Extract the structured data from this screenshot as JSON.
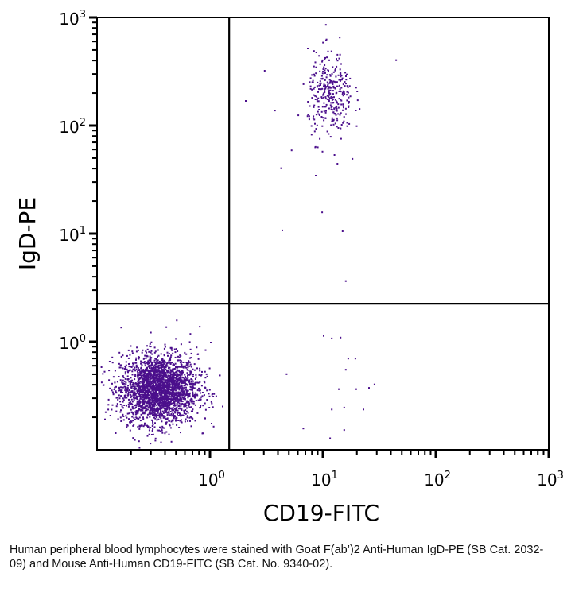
{
  "chart_data": {
    "type": "scatter",
    "title": "",
    "xlabel": "CD19-FITC",
    "ylabel": "IgD-PE",
    "xscale": "log",
    "yscale": "log",
    "xlim": [
      0.1,
      1000
    ],
    "ylim": [
      0.1,
      1000
    ],
    "grid": false,
    "point_color": "#4b0f8c",
    "x_ticks": [
      {
        "base": "10",
        "exp": "0",
        "value": 1
      },
      {
        "base": "10",
        "exp": "1",
        "value": 10
      },
      {
        "base": "10",
        "exp": "2",
        "value": 100
      },
      {
        "base": "10",
        "exp": "3",
        "value": 1000
      }
    ],
    "y_ticks": [
      {
        "base": "10",
        "exp": "0",
        "value": 1
      },
      {
        "base": "10",
        "exp": "1",
        "value": 10
      },
      {
        "base": "10",
        "exp": "2",
        "value": 100
      },
      {
        "base": "10",
        "exp": "3",
        "value": 1000
      }
    ],
    "quadrant_gates": {
      "x": 1.48,
      "y": 2.25
    },
    "populations": [
      {
        "name": "CD19- IgD- lymphocytes",
        "center": [
          0.35,
          0.37
        ],
        "log_spread": [
          0.17,
          0.16
        ],
        "count": 2600
      },
      {
        "name": "CD19+ IgD+ B cells",
        "center": [
          11.5,
          190
        ],
        "log_spread": [
          0.1,
          0.2
        ],
        "count": 330
      }
    ],
    "sparse_points": [
      [
        10,
        1.15
      ],
      [
        11.8,
        1.09
      ],
      [
        14.1,
        1.11
      ],
      [
        16.5,
        0.71
      ],
      [
        19.1,
        0.71
      ],
      [
        4.7,
        0.51
      ],
      [
        15.7,
        0.56
      ],
      [
        13.6,
        0.37
      ],
      [
        19.4,
        0.37
      ],
      [
        25.2,
        0.38
      ],
      [
        28.2,
        0.41
      ],
      [
        11.8,
        0.24
      ],
      [
        15.2,
        0.25
      ],
      [
        22.5,
        0.24
      ],
      [
        6.6,
        0.16
      ],
      [
        15.2,
        0.155
      ],
      [
        11.4,
        0.13
      ],
      [
        2.04,
        172
      ],
      [
        3.0,
        327
      ],
      [
        4.2,
        41
      ],
      [
        4.3,
        10.9
      ],
      [
        9.7,
        16
      ],
      [
        14.7,
        10.7
      ],
      [
        15.7,
        3.7
      ],
      [
        43.8,
        410
      ],
      [
        3.7,
        140
      ],
      [
        5.2,
        60
      ],
      [
        8.5,
        35
      ],
      [
        18,
        50
      ],
      [
        0.5,
        1.6
      ],
      [
        0.8,
        1.4
      ],
      [
        0.66,
        1.2
      ],
      [
        1.0,
        1.0
      ],
      [
        0.9,
        0.85
      ],
      [
        0.75,
        0.9
      ]
    ]
  },
  "caption": "Human peripheral blood lymphocytes were stained with Goat F(ab’)2 Anti-Human IgD-PE (SB Cat. 2032-09) and Mouse Anti-Human CD19-FITC (SB Cat. No. 9340-02)."
}
